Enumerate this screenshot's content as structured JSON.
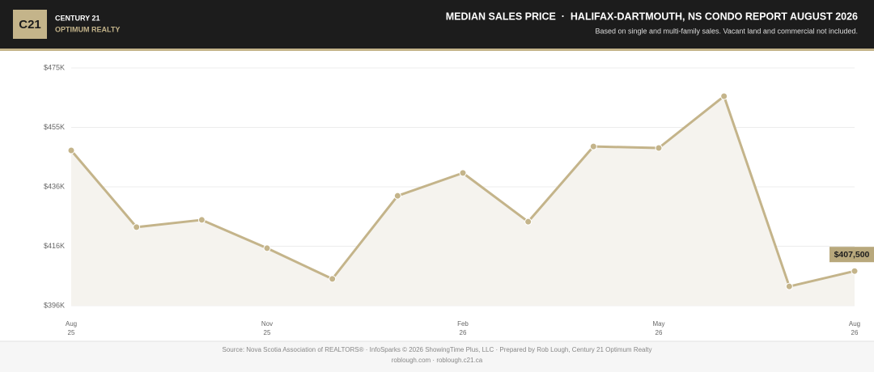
{
  "header": {
    "logo": "C21",
    "brand": "CENTURY 21",
    "office": "OPTIMUM REALTY"
  },
  "chart_data": {
    "type": "line",
    "title": "MEDIAN SALES PRICE  ·  HALIFAX-DARTMOUTH, NS CONDO REPORT AUGUST 2026",
    "subtitle": "Based on single and multi-family sales. Vacant land and commercial not included.",
    "categories": [
      [
        "Aug",
        "25"
      ],
      null,
      null,
      [
        "Nov",
        "25"
      ],
      null,
      null,
      [
        "Feb",
        "26"
      ],
      null,
      null,
      [
        "May",
        "26"
      ],
      null,
      null,
      [
        "Aug",
        "26"
      ]
    ],
    "values": [
      447600,
      422100,
      424500,
      415100,
      404900,
      432500,
      440100,
      423900,
      448900,
      448400,
      465600,
      402400,
      407500
    ],
    "value_labels": [
      null,
      null,
      null,
      null,
      null,
      null,
      null,
      null,
      null,
      null,
      null,
      null,
      "$407,500"
    ],
    "color": "#c4b48a",
    "area_color": "#f5f3ee",
    "ylim": [
      396000,
      475000
    ],
    "yticks": [
      {
        "value": 396000,
        "label": "$396K"
      },
      {
        "value": 415750,
        "label": "$416K"
      },
      {
        "value": 435500,
        "label": "$436K"
      },
      {
        "value": 455250,
        "label": "$455K"
      },
      {
        "value": 475000,
        "label": "$475K"
      }
    ],
    "grid": true
  },
  "footer": {
    "source": "Source: Nova Scotia Association of REALTORS® · InfoSparks © 2026 ShowingTime Plus, LLC · Prepared by Rob Lough, Century 21 Optimum Realty",
    "links": "roblough.com · roblough.c21.ca"
  }
}
